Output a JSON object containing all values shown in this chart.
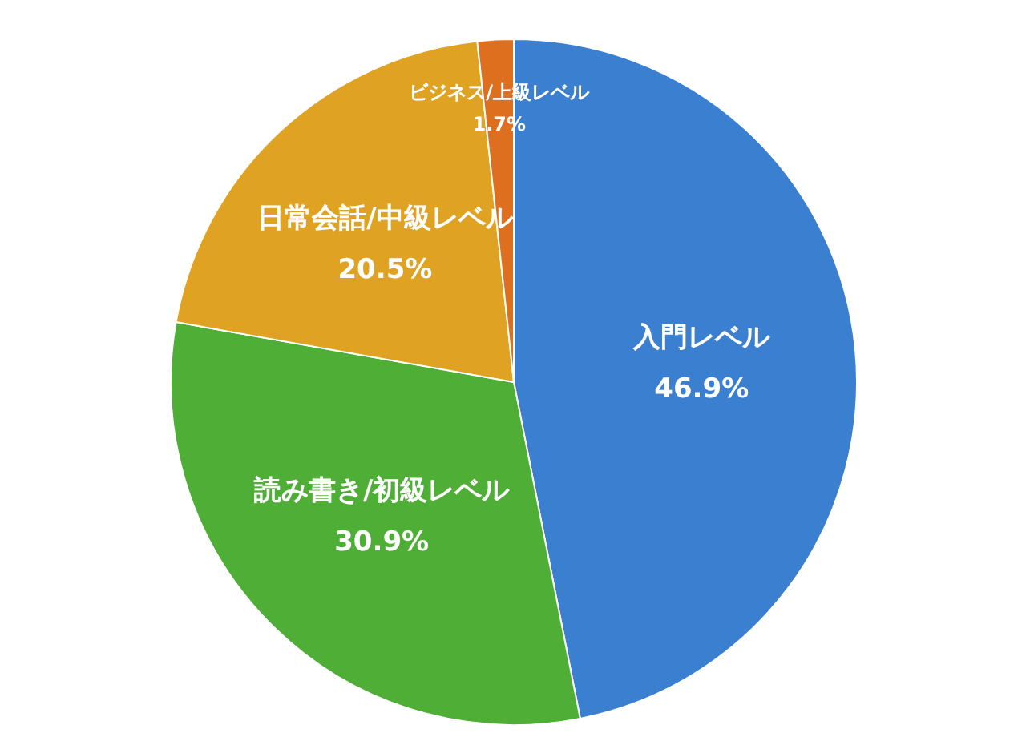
{
  "chart_data": {
    "type": "pie",
    "categories": [
      "入門レベル",
      "読み書き/初級レベル",
      "日常会話/中級レベル",
      "ビジネス/上級レベル"
    ],
    "values": [
      46.9,
      30.9,
      20.5,
      1.7
    ],
    "value_labels": [
      "46.9%",
      "30.9%",
      "20.5%",
      "1.7%"
    ],
    "colors": [
      "#3b7fd1",
      "#4eae36",
      "#e0a222",
      "#de6f1e"
    ]
  }
}
